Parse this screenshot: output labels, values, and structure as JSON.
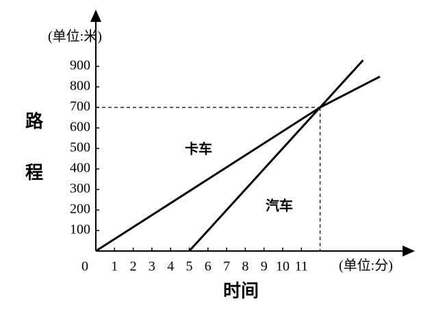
{
  "chart_data": {
    "type": "line",
    "y_unit": "(单位:米)",
    "x_unit": "(单位:分)",
    "ylabel": "路程",
    "xlabel": "时间",
    "xlim": [
      0,
      17
    ],
    "ylim": [
      0,
      1170
    ],
    "xticks": [
      0,
      1,
      2,
      3,
      4,
      5,
      6,
      7,
      8,
      9,
      10,
      11
    ],
    "yticks": [
      100,
      200,
      300,
      400,
      500,
      600,
      700,
      800,
      900
    ],
    "reference": {
      "x": 12,
      "y": 700
    },
    "series": [
      {
        "name": "卡车",
        "color": "#000000",
        "x": [
          0,
          12,
          15.2
        ],
        "values": [
          0,
          700,
          850
        ]
      },
      {
        "name": "汽车",
        "color": "#000000",
        "x": [
          5,
          12,
          14.3
        ],
        "values": [
          0,
          700,
          930
        ]
      }
    ]
  }
}
